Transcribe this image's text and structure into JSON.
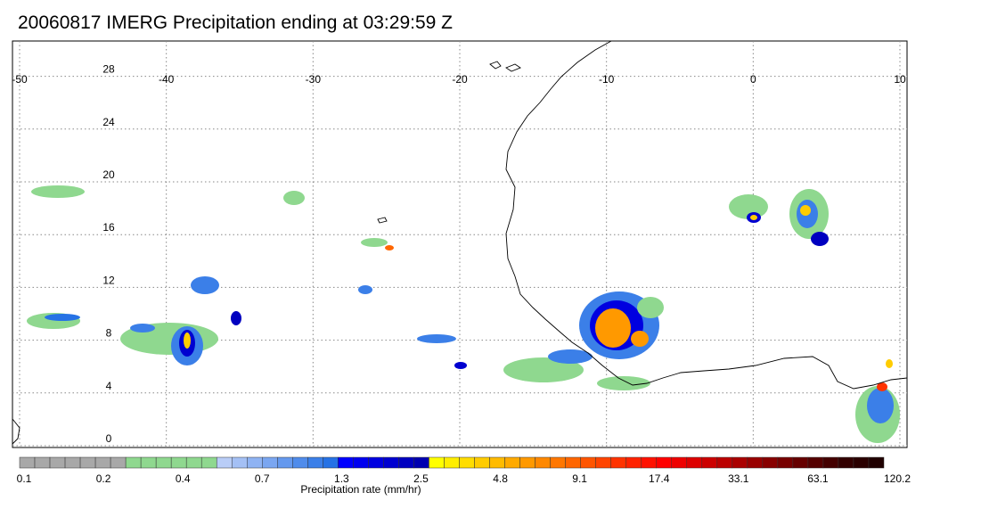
{
  "title": "20060817 IMERG Precipitation ending at 03:29:59 Z",
  "map": {
    "lon_range": [
      -50,
      10
    ],
    "lat_range": [
      0,
      30
    ],
    "lon_ticks": [
      "-50",
      "-40",
      "-30",
      "-20",
      "-10",
      "0",
      "10"
    ],
    "lat_ticks": [
      "28",
      "24",
      "20",
      "16",
      "12",
      "8",
      "4",
      "0"
    ],
    "gridlines": "dotted"
  },
  "colorbar": {
    "label": "Precipitation rate (mm/hr)",
    "tick_labels": [
      "0.1",
      "0.2",
      "0.4",
      "0.7",
      "1.3",
      "2.5",
      "4.8",
      "9.1",
      "17.4",
      "33.1",
      "63.1",
      "120.2"
    ],
    "colors": [
      "#a8a8a8",
      "#a8a8a8",
      "#a8a8a8",
      "#a8a8a8",
      "#a8a8a8",
      "#a8a8a8",
      "#a8a8a8",
      "#8fd88f",
      "#8fd88f",
      "#8fd88f",
      "#8fd88f",
      "#8fd88f",
      "#8fd88f",
      "#b9cdf7",
      "#a4c0f5",
      "#8fb3f3",
      "#7aa6f1",
      "#6599ee",
      "#508ceb",
      "#3b7fe8",
      "#2672e5",
      "#0000ff",
      "#0000f0",
      "#0000e0",
      "#0000d0",
      "#0000c0",
      "#0000b0",
      "#ffff00",
      "#ffee00",
      "#ffdd00",
      "#ffcc00",
      "#ffbb00",
      "#ffaa00",
      "#ff9900",
      "#ff8800",
      "#ff7700",
      "#ff6600",
      "#ff5500",
      "#ff4400",
      "#ff3300",
      "#ff2200",
      "#ff1100",
      "#ff0000",
      "#ee0000",
      "#dd0000",
      "#cc0000",
      "#bb0000",
      "#aa0000",
      "#990000",
      "#880000",
      "#770000",
      "#660000",
      "#550000",
      "#440000",
      "#330000",
      "#2a0000",
      "#200000"
    ]
  }
}
